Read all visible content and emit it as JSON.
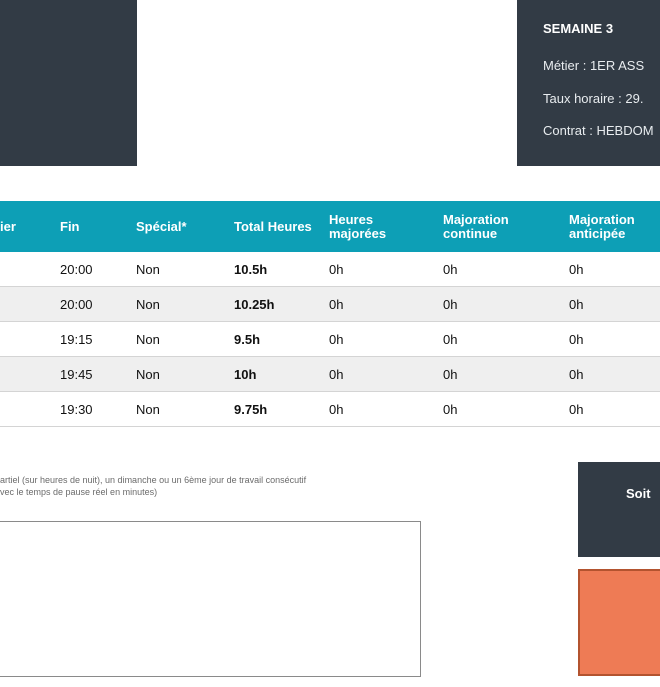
{
  "week": {
    "title": "SEMAINE 3",
    "metier": "Métier : 1ER ASS",
    "taux": "Taux horaire : 29.",
    "contrat": "Contrat : HEBDOM"
  },
  "table": {
    "headers": [
      "ier",
      "Fin",
      "Spécial*",
      "Total Heures",
      "Heures majorées",
      "Majoration continue",
      "Majoration anticipée"
    ],
    "rows": [
      {
        "fin": "20:00",
        "special": "Non",
        "total": "10.5h",
        "majorees": "0h",
        "continue": "0h",
        "anticipee": "0h"
      },
      {
        "fin": "20:00",
        "special": "Non",
        "total": "10.25h",
        "majorees": "0h",
        "continue": "0h",
        "anticipee": "0h"
      },
      {
        "fin": "19:15",
        "special": "Non",
        "total": "9.5h",
        "majorees": "0h",
        "continue": "0h",
        "anticipee": "0h"
      },
      {
        "fin": "19:45",
        "special": "Non",
        "total": "10h",
        "majorees": "0h",
        "continue": "0h",
        "anticipee": "0h"
      },
      {
        "fin": "19:30",
        "special": "Non",
        "total": "9.75h",
        "majorees": "0h",
        "continue": "0h",
        "anticipee": "0h"
      }
    ]
  },
  "footnotes": {
    "line1": "artiel (sur heures de nuit), un dimanche ou un 6ème jour de travail consécutif",
    "line2": "vec le temps de pause réel en minutes)"
  },
  "summary": {
    "soit_label": "Soit"
  },
  "colors": {
    "dark": "#323b45",
    "header": "#0d9fb6",
    "accent": "#ee7b55"
  }
}
